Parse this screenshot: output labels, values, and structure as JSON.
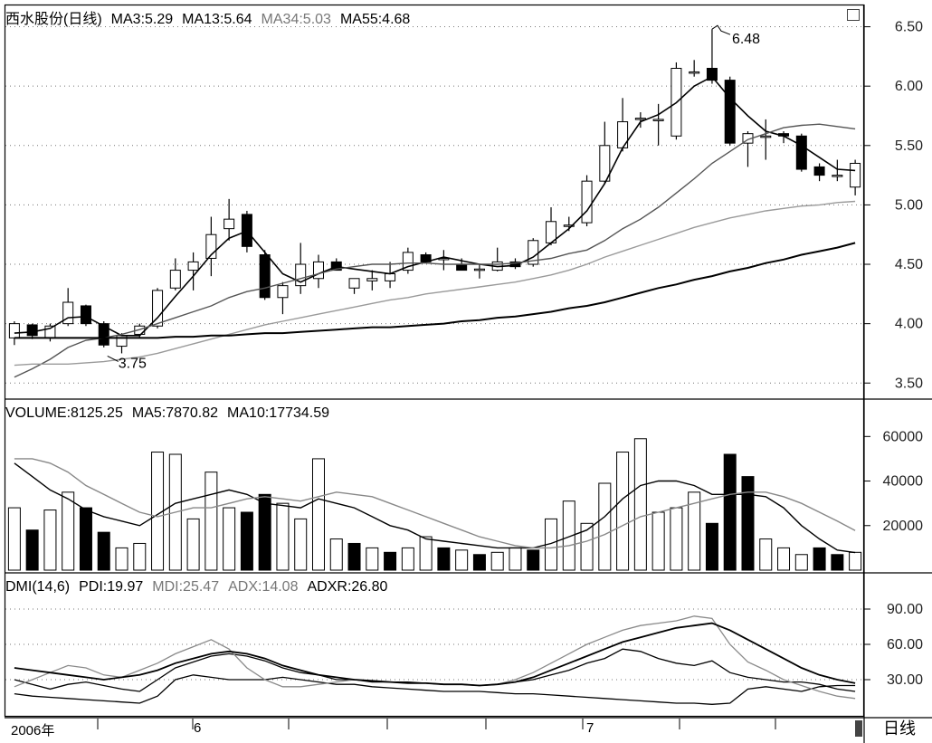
{
  "header_price": {
    "name": "西水股份(日线)",
    "ma3": "MA3:5.29",
    "ma13": "MA13:5.64",
    "ma34": "MA34:5.03",
    "ma55": "MA55:4.68"
  },
  "header_volume": {
    "volume": "VOLUME:8125.25",
    "ma5": "MA5:7870.82",
    "ma10": "MA10:17734.59"
  },
  "header_dmi": {
    "dmi": "DMI(14,6)",
    "pdi": "PDI:19.97",
    "mdi": "MDI:25.47",
    "adx": "ADX:14.08",
    "adxr": "ADXR:26.80"
  },
  "footer": {
    "x_labels": [
      "2006年",
      "6",
      "7"
    ],
    "period_button": "日线"
  },
  "annotations": {
    "high": "6.48",
    "low": "3.75"
  },
  "chart_data": [
    {
      "type": "candlestick",
      "title": "西水股份(日线)",
      "y_ticks": [
        "6.50",
        "6.00",
        "5.50",
        "5.00",
        "4.50",
        "4.00",
        "3.50"
      ],
      "ylim": [
        3.38,
        6.55
      ],
      "candles": [
        {
          "o": 3.88,
          "h": 4.02,
          "l": 3.82,
          "c": 4.0
        },
        {
          "o": 3.99,
          "h": 4.0,
          "l": 3.87,
          "c": 3.9
        },
        {
          "o": 3.88,
          "h": 4.0,
          "l": 3.85,
          "c": 3.98
        },
        {
          "o": 4.0,
          "h": 4.3,
          "l": 3.98,
          "c": 4.18
        },
        {
          "o": 4.15,
          "h": 4.16,
          "l": 3.98,
          "c": 4.0
        },
        {
          "o": 4.0,
          "h": 4.02,
          "l": 3.8,
          "c": 3.82
        },
        {
          "o": 3.81,
          "h": 3.92,
          "l": 3.75,
          "c": 3.9
        },
        {
          "o": 3.91,
          "h": 4.0,
          "l": 3.88,
          "c": 3.98
        },
        {
          "o": 3.98,
          "h": 4.3,
          "l": 3.96,
          "c": 4.28
        },
        {
          "o": 4.3,
          "h": 4.55,
          "l": 4.28,
          "c": 4.45
        },
        {
          "o": 4.45,
          "h": 4.6,
          "l": 4.28,
          "c": 4.52
        },
        {
          "o": 4.55,
          "h": 4.9,
          "l": 4.4,
          "c": 4.75
        },
        {
          "o": 4.8,
          "h": 5.05,
          "l": 4.7,
          "c": 4.88
        },
        {
          "o": 4.92,
          "h": 4.95,
          "l": 4.6,
          "c": 4.65
        },
        {
          "o": 4.58,
          "h": 4.62,
          "l": 4.2,
          "c": 4.22
        },
        {
          "o": 4.22,
          "h": 4.35,
          "l": 4.08,
          "c": 4.32
        },
        {
          "o": 4.32,
          "h": 4.68,
          "l": 4.25,
          "c": 4.5
        },
        {
          "o": 4.38,
          "h": 4.58,
          "l": 4.3,
          "c": 4.52
        },
        {
          "o": 4.52,
          "h": 4.55,
          "l": 4.45,
          "c": 4.45
        },
        {
          "o": 4.3,
          "h": 4.38,
          "l": 4.25,
          "c": 4.38
        },
        {
          "o": 4.36,
          "h": 4.45,
          "l": 4.28,
          "c": 4.38
        },
        {
          "o": 4.36,
          "h": 4.52,
          "l": 4.3,
          "c": 4.42
        },
        {
          "o": 4.45,
          "h": 4.64,
          "l": 4.42,
          "c": 4.6
        },
        {
          "o": 4.58,
          "h": 4.6,
          "l": 4.52,
          "c": 4.52
        },
        {
          "o": 4.55,
          "h": 4.62,
          "l": 4.45,
          "c": 4.55
        },
        {
          "o": 4.5,
          "h": 4.55,
          "l": 4.45,
          "c": 4.45
        },
        {
          "o": 4.46,
          "h": 4.5,
          "l": 4.38,
          "c": 4.46
        },
        {
          "o": 4.45,
          "h": 4.64,
          "l": 4.44,
          "c": 4.52
        },
        {
          "o": 4.52,
          "h": 4.55,
          "l": 4.46,
          "c": 4.48
        },
        {
          "o": 4.5,
          "h": 4.72,
          "l": 4.48,
          "c": 4.7
        },
        {
          "o": 4.68,
          "h": 4.98,
          "l": 4.66,
          "c": 4.86
        },
        {
          "o": 4.83,
          "h": 4.9,
          "l": 4.78,
          "c": 4.83
        },
        {
          "o": 4.85,
          "h": 5.25,
          "l": 4.82,
          "c": 5.2
        },
        {
          "o": 5.2,
          "h": 5.7,
          "l": 5.18,
          "c": 5.5
        },
        {
          "o": 5.48,
          "h": 5.9,
          "l": 5.45,
          "c": 5.7
        },
        {
          "o": 5.73,
          "h": 5.78,
          "l": 5.65,
          "c": 5.73
        },
        {
          "o": 5.72,
          "h": 5.85,
          "l": 5.5,
          "c": 5.72
        },
        {
          "o": 5.58,
          "h": 6.2,
          "l": 5.55,
          "c": 6.15
        },
        {
          "o": 6.12,
          "h": 6.22,
          "l": 6.08,
          "c": 6.12
        },
        {
          "o": 6.15,
          "h": 6.48,
          "l": 6.02,
          "c": 6.05
        },
        {
          "o": 6.05,
          "h": 6.08,
          "l": 5.5,
          "c": 5.52
        },
        {
          "o": 5.52,
          "h": 5.62,
          "l": 5.32,
          "c": 5.6
        },
        {
          "o": 5.58,
          "h": 5.72,
          "l": 5.38,
          "c": 5.58
        },
        {
          "o": 5.6,
          "h": 5.62,
          "l": 5.52,
          "c": 5.58
        },
        {
          "o": 5.58,
          "h": 5.6,
          "l": 5.28,
          "c": 5.3
        },
        {
          "o": 5.32,
          "h": 5.35,
          "l": 5.2,
          "c": 5.25
        },
        {
          "o": 5.25,
          "h": 5.38,
          "l": 5.2,
          "c": 5.25
        },
        {
          "o": 5.15,
          "h": 5.38,
          "l": 5.08,
          "c": 5.35
        }
      ],
      "ma_lines": [
        {
          "name": "MA3",
          "color": "#000000",
          "width": 1.6,
          "values": [
            3.92,
            3.93,
            3.96,
            4.05,
            4.06,
            3.98,
            3.9,
            3.9,
            4.05,
            4.23,
            4.4,
            4.58,
            4.72,
            4.78,
            4.6,
            4.42,
            4.35,
            4.42,
            4.48,
            4.46,
            4.44,
            4.42,
            4.48,
            4.52,
            4.56,
            4.53,
            4.5,
            4.48,
            4.49,
            4.56,
            4.68,
            4.8,
            4.95,
            5.18,
            5.48,
            5.7,
            5.76,
            5.86,
            6.0,
            6.08,
            5.9,
            5.75,
            5.62,
            5.58,
            5.5,
            5.4,
            5.3,
            5.29
          ]
        },
        {
          "name": "MA13",
          "color": "#555555",
          "width": 1.4,
          "values": [
            3.55,
            3.62,
            3.7,
            3.8,
            3.86,
            3.88,
            3.91,
            3.95,
            4.0,
            4.05,
            4.1,
            4.15,
            4.22,
            4.27,
            4.3,
            4.34,
            4.38,
            4.42,
            4.46,
            4.48,
            4.5,
            4.5,
            4.51,
            4.51,
            4.5,
            4.5,
            4.5,
            4.5,
            4.51,
            4.53,
            4.55,
            4.59,
            4.62,
            4.7,
            4.8,
            4.88,
            4.98,
            5.1,
            5.22,
            5.35,
            5.45,
            5.55,
            5.6,
            5.65,
            5.67,
            5.68,
            5.66,
            5.64
          ]
        },
        {
          "name": "MA34",
          "color": "#9a9a9a",
          "width": 1.4,
          "values": [
            3.65,
            3.66,
            3.66,
            3.66,
            3.67,
            3.68,
            3.7,
            3.72,
            3.75,
            3.79,
            3.83,
            3.87,
            3.91,
            3.95,
            3.99,
            4.02,
            4.05,
            4.08,
            4.11,
            4.14,
            4.17,
            4.2,
            4.22,
            4.25,
            4.27,
            4.29,
            4.31,
            4.33,
            4.35,
            4.38,
            4.41,
            4.45,
            4.5,
            4.56,
            4.61,
            4.66,
            4.71,
            4.76,
            4.81,
            4.85,
            4.89,
            4.92,
            4.95,
            4.97,
            4.99,
            5.0,
            5.02,
            5.03
          ]
        },
        {
          "name": "MA55",
          "color": "#000000",
          "width": 2.0,
          "values": [
            3.88,
            3.88,
            3.88,
            3.88,
            3.88,
            3.88,
            3.88,
            3.88,
            3.88,
            3.89,
            3.89,
            3.9,
            3.9,
            3.91,
            3.92,
            3.92,
            3.93,
            3.94,
            3.95,
            3.96,
            3.97,
            3.97,
            3.98,
            3.99,
            4.0,
            4.02,
            4.03,
            4.05,
            4.06,
            4.08,
            4.1,
            4.13,
            4.15,
            4.18,
            4.22,
            4.26,
            4.3,
            4.33,
            4.37,
            4.4,
            4.44,
            4.47,
            4.51,
            4.54,
            4.58,
            4.61,
            4.64,
            4.68
          ]
        }
      ]
    },
    {
      "type": "bar",
      "title": "VOLUME",
      "y_ticks": [
        "60000",
        "40000",
        "20000"
      ],
      "ylim": [
        0,
        65000
      ],
      "values": [
        28000,
        18000,
        27000,
        35000,
        28000,
        17000,
        10000,
        12000,
        53000,
        52000,
        23000,
        44000,
        28000,
        26000,
        34000,
        30000,
        23000,
        50000,
        14000,
        12000,
        10000,
        8000,
        10000,
        15000,
        10000,
        9000,
        7000,
        8000,
        10000,
        9000,
        23000,
        31000,
        21000,
        39000,
        53000,
        59000,
        26000,
        28000,
        35000,
        21000,
        52000,
        42000,
        14000,
        10000,
        7000,
        10000,
        7000,
        8000
      ],
      "down": [
        false,
        true,
        false,
        false,
        true,
        true,
        false,
        false,
        false,
        false,
        false,
        false,
        false,
        true,
        true,
        false,
        false,
        false,
        false,
        true,
        false,
        true,
        false,
        false,
        true,
        false,
        true,
        false,
        false,
        true,
        false,
        false,
        false,
        false,
        false,
        false,
        false,
        false,
        false,
        true,
        true,
        true,
        false,
        false,
        false,
        true,
        true,
        false
      ],
      "ma_lines": [
        {
          "name": "MA5",
          "color": "#000000",
          "values": [
            48000,
            42000,
            36000,
            32000,
            27000,
            24000,
            22000,
            20000,
            25000,
            30000,
            32000,
            34000,
            36000,
            34000,
            30000,
            29000,
            28000,
            32000,
            30000,
            28000,
            24000,
            20000,
            18000,
            14000,
            13000,
            12000,
            11000,
            10000,
            10000,
            10000,
            12000,
            15000,
            18000,
            24000,
            32000,
            38000,
            40000,
            40000,
            38000,
            34000,
            34000,
            34000,
            33000,
            28000,
            20000,
            14000,
            9000,
            7871
          ]
        },
        {
          "name": "MA10",
          "color": "#888888",
          "values": [
            50000,
            50000,
            48000,
            44000,
            38000,
            34000,
            30000,
            26000,
            24000,
            26000,
            28000,
            28000,
            30000,
            32000,
            33000,
            32000,
            31000,
            33000,
            35000,
            34000,
            33000,
            30000,
            27000,
            24000,
            21000,
            18000,
            15000,
            13000,
            11000,
            10000,
            10000,
            11000,
            13000,
            16000,
            20000,
            24000,
            26000,
            28000,
            30000,
            32000,
            34000,
            35000,
            35000,
            33000,
            30000,
            26000,
            22000,
            17735
          ]
        }
      ]
    },
    {
      "type": "line",
      "title": "DMI(14,6)",
      "y_ticks": [
        "90.00",
        "60.00",
        "30.00"
      ],
      "ylim": [
        0,
        100
      ],
      "series": [
        {
          "name": "PDI",
          "color": "#000000",
          "values": [
            30,
            26,
            22,
            26,
            28,
            25,
            22,
            20,
            30,
            40,
            45,
            50,
            52,
            50,
            46,
            40,
            36,
            34,
            30,
            30,
            28,
            28,
            28,
            27,
            26,
            26,
            25,
            26,
            28,
            30,
            34,
            38,
            44,
            48,
            56,
            54,
            48,
            44,
            42,
            46,
            36,
            32,
            30,
            28,
            28,
            26,
            22,
            20
          ]
        },
        {
          "name": "MDI",
          "color": "#000000",
          "values": [
            18,
            16,
            15,
            14,
            13,
            12,
            11,
            10,
            16,
            30,
            34,
            32,
            30,
            30,
            30,
            32,
            30,
            28,
            26,
            26,
            24,
            23,
            22,
            21,
            20,
            20,
            20,
            19,
            18,
            18,
            17,
            16,
            15,
            14,
            13,
            12,
            11,
            10,
            10,
            9,
            10,
            22,
            24,
            22,
            20,
            24,
            25,
            25
          ]
        },
        {
          "name": "ADX",
          "color": "#8a8a8a",
          "values": [
            24,
            30,
            36,
            42,
            40,
            34,
            32,
            38,
            44,
            52,
            58,
            64,
            56,
            40,
            30,
            24,
            24,
            26,
            28,
            30,
            29,
            28,
            27,
            27,
            26,
            26,
            25,
            26,
            30,
            36,
            44,
            52,
            60,
            66,
            72,
            76,
            78,
            80,
            84,
            82,
            60,
            45,
            38,
            30,
            25,
            20,
            16,
            14
          ]
        },
        {
          "name": "ADXR",
          "color": "#000000",
          "values": [
            40,
            38,
            36,
            34,
            32,
            30,
            32,
            34,
            38,
            44,
            48,
            52,
            54,
            52,
            48,
            42,
            38,
            34,
            32,
            30,
            29,
            28,
            27,
            27,
            26,
            26,
            25,
            26,
            28,
            32,
            38,
            44,
            50,
            56,
            62,
            66,
            70,
            74,
            76,
            78,
            72,
            64,
            56,
            48,
            40,
            34,
            30,
            27
          ]
        }
      ]
    }
  ]
}
